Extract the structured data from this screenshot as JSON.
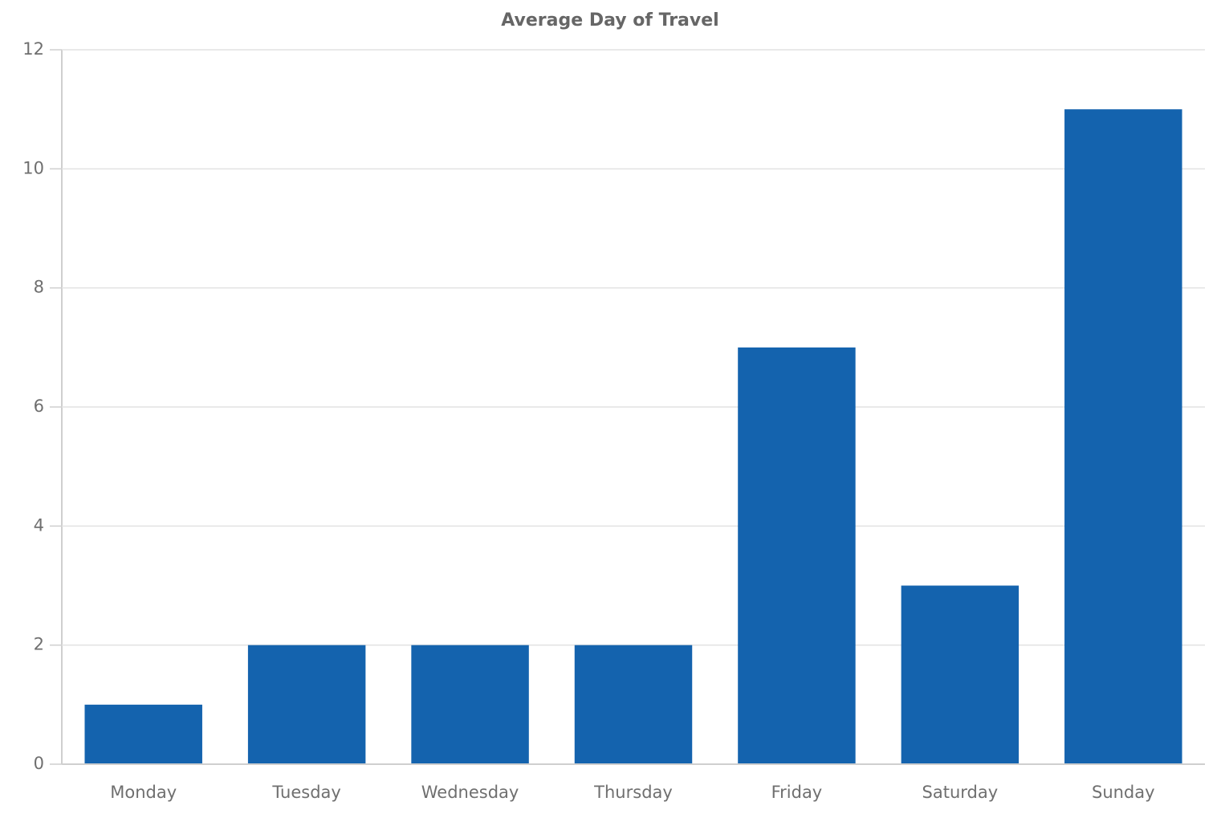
{
  "chart_data": {
    "type": "bar",
    "title": "Average Day of Travel",
    "categories": [
      "Monday",
      "Tuesday",
      "Wednesday",
      "Thursday",
      "Friday",
      "Saturday",
      "Sunday"
    ],
    "values": [
      1,
      2,
      2,
      2,
      7,
      3,
      11
    ],
    "color": "#1463ae",
    "ylim": [
      0,
      12
    ],
    "yticks": [
      0,
      2,
      4,
      6,
      8,
      10,
      12
    ],
    "grid": true
  }
}
